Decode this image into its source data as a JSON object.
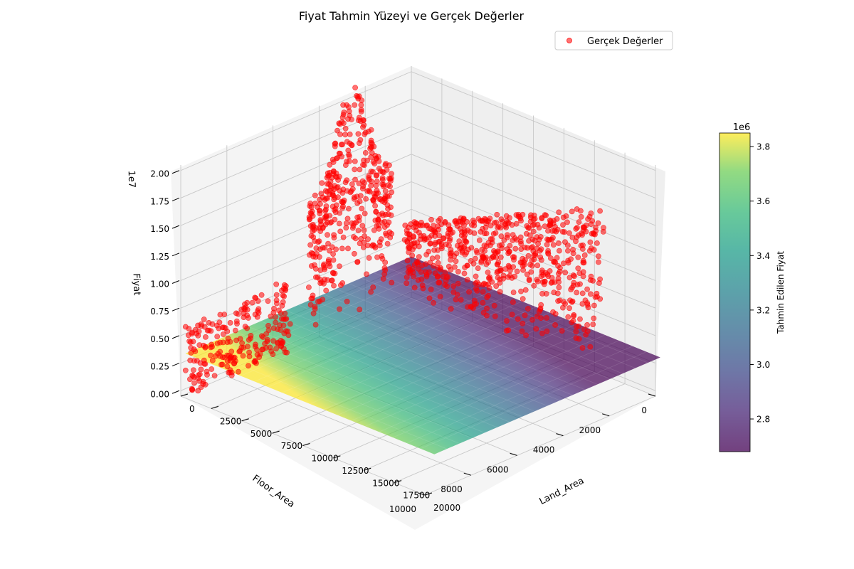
{
  "chart_data": {
    "type": "scatter",
    "projection": "3d",
    "title": "Fiyat Tahmin Yüzeyi ve Gerçek Değerler",
    "x_axis": {
      "label": "Floor_Area",
      "ticks": [
        0,
        2000,
        4000,
        6000,
        8000,
        10000
      ],
      "tick_labels": [
        "0",
        "2000",
        "4000",
        "6000",
        "8000",
        "10000"
      ],
      "range": [
        0,
        10000
      ]
    },
    "y_axis": {
      "label": "Land_Area",
      "ticks": [
        0,
        2500,
        5000,
        7500,
        10000,
        12500,
        15000,
        17500,
        20000
      ],
      "tick_labels": [
        "0",
        "2500",
        "5000",
        "7500",
        "10000",
        "12500",
        "15000",
        "17500",
        "20000"
      ],
      "range": [
        0,
        20000
      ]
    },
    "z_axis": {
      "label": "Fiyat",
      "offset_text": "1e7",
      "ticks": [
        0,
        0.25,
        0.5,
        0.75,
        1.0,
        1.25,
        1.5,
        1.75,
        2.0
      ],
      "tick_labels": [
        "0.00",
        "0.25",
        "0.50",
        "0.75",
        "1.00",
        "1.25",
        "1.50",
        "1.75",
        "2.00"
      ],
      "range": [
        -0.05,
        2.05
      ]
    },
    "grid": true,
    "legend": {
      "placement": "top-right",
      "entries": [
        {
          "label": "Gerçek Değerler",
          "color": "#ff0000"
        }
      ]
    },
    "surface": {
      "name": "Tahmin Edilen Fiyat",
      "colormap": "viridis",
      "alpha": 0.7,
      "floor_range": [
        0,
        10000
      ],
      "land_range": [
        0,
        20000
      ],
      "value_at_floor_0": 2.68,
      "value_at_floor_10000": 3.85,
      "value_units": "1e6"
    },
    "colorbar": {
      "label": "Tahmin Edilen Fiyat",
      "offset_text": "1e6",
      "ticks": [
        2.8,
        3.0,
        3.2,
        3.4,
        3.6,
        3.8
      ],
      "tick_labels": [
        "2.8",
        "3.0",
        "3.2",
        "3.4",
        "3.6",
        "3.8"
      ],
      "range": [
        2.68,
        3.85
      ]
    },
    "series": [
      {
        "name": "Gerçek Değerler",
        "marker": "circle",
        "color": "#ff0000",
        "alpha": 0.55,
        "clusters": [
          {
            "floor_area": [
              0,
              500
            ],
            "land_area": [
              0,
              16500
            ],
            "fiyat_1e7": [
              0.0,
              1.5
            ]
          },
          {
            "floor_area": [
              800,
              4500
            ],
            "land_area": [
              0,
              200
            ],
            "fiyat_1e7": [
              0.0,
              2.1
            ]
          },
          {
            "floor_area": [
              5500,
              10000
            ],
            "land_area": [
              0,
              800
            ],
            "fiyat_1e7": [
              0.0,
              0.6
            ]
          }
        ]
      }
    ]
  }
}
